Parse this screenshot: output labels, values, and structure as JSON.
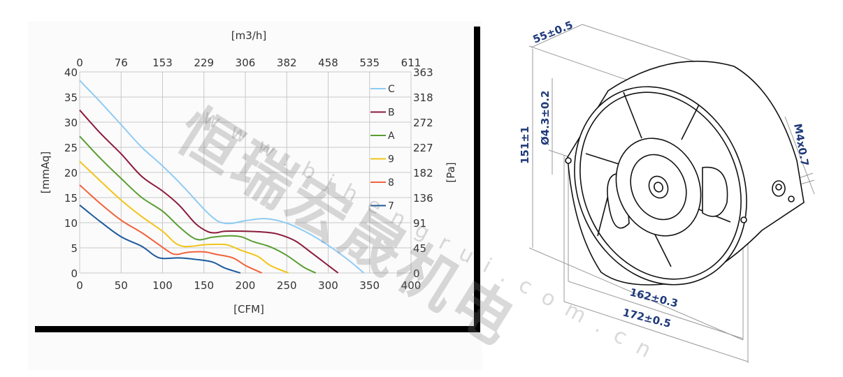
{
  "chart_data": {
    "type": "line",
    "xlabel": "[CFM]",
    "ylabel": "[mmAq]",
    "x2label": "[m3/h]",
    "y2label": "[Pa]",
    "xlim": [
      0,
      400
    ],
    "ylim": [
      0,
      40
    ],
    "x_ticks": [
      "0",
      "50",
      "100",
      "150",
      "200",
      "250",
      "300",
      "350",
      "400"
    ],
    "y_ticks": [
      "0",
      "5",
      "10",
      "15",
      "20",
      "25",
      "30",
      "35",
      "40"
    ],
    "x2_ticks": [
      "0",
      "76",
      "153",
      "229",
      "306",
      "382",
      "458",
      "535",
      "611"
    ],
    "y2_ticks": [
      "0",
      "45",
      "91",
      "136",
      "182",
      "227",
      "272",
      "318",
      "363"
    ],
    "grid": true,
    "legend_position": "right",
    "series": [
      {
        "name": "C",
        "color": "#8ecbf5",
        "points": [
          [
            0,
            38.3
          ],
          [
            25,
            34
          ],
          [
            50,
            29.5
          ],
          [
            75,
            25
          ],
          [
            100,
            21.3
          ],
          [
            125,
            17.2
          ],
          [
            150,
            12.7
          ],
          [
            165,
            10.5
          ],
          [
            175,
            9.9
          ],
          [
            185,
            9.9
          ],
          [
            200,
            10.4
          ],
          [
            225,
            10.8
          ],
          [
            250,
            9.9
          ],
          [
            275,
            8
          ],
          [
            300,
            5.5
          ],
          [
            325,
            2.5
          ],
          [
            343,
            0
          ]
        ]
      },
      {
        "name": "B",
        "color": "#8b1a3a",
        "points": [
          [
            0,
            32.4
          ],
          [
            25,
            27.8
          ],
          [
            50,
            23.7
          ],
          [
            75,
            19.2
          ],
          [
            100,
            16.3
          ],
          [
            120,
            13.5
          ],
          [
            140,
            9.8
          ],
          [
            155,
            8.2
          ],
          [
            165,
            8
          ],
          [
            175,
            8.3
          ],
          [
            200,
            8.3
          ],
          [
            225,
            8.1
          ],
          [
            240,
            7.7
          ],
          [
            260,
            6.4
          ],
          [
            280,
            4
          ],
          [
            300,
            1.5
          ],
          [
            312,
            0
          ]
        ]
      },
      {
        "name": "A",
        "color": "#5a9e32",
        "points": [
          [
            0,
            27.2
          ],
          [
            25,
            22.8
          ],
          [
            50,
            18.8
          ],
          [
            75,
            15
          ],
          [
            100,
            12.3
          ],
          [
            120,
            9.2
          ],
          [
            135,
            7.2
          ],
          [
            145,
            6.6
          ],
          [
            160,
            7.1
          ],
          [
            180,
            7.4
          ],
          [
            195,
            7.2
          ],
          [
            210,
            6.2
          ],
          [
            230,
            5.2
          ],
          [
            250,
            3.5
          ],
          [
            270,
            1.2
          ],
          [
            285,
            0
          ]
        ]
      },
      {
        "name": "9",
        "color": "#f2c419",
        "points": [
          [
            0,
            22.2
          ],
          [
            25,
            18.3
          ],
          [
            50,
            14.5
          ],
          [
            75,
            11.2
          ],
          [
            100,
            8.3
          ],
          [
            115,
            6
          ],
          [
            125,
            5.3
          ],
          [
            135,
            5.3
          ],
          [
            150,
            5.6
          ],
          [
            170,
            5.7
          ],
          [
            180,
            5.5
          ],
          [
            195,
            4.5
          ],
          [
            215,
            3.3
          ],
          [
            230,
            1.5
          ],
          [
            252,
            0
          ]
        ]
      },
      {
        "name": "8",
        "color": "#f2623a",
        "points": [
          [
            0,
            17.5
          ],
          [
            25,
            13.8
          ],
          [
            50,
            10.5
          ],
          [
            75,
            8
          ],
          [
            95,
            5.7
          ],
          [
            110,
            4
          ],
          [
            118,
            3.7
          ],
          [
            130,
            4.1
          ],
          [
            150,
            4.2
          ],
          [
            165,
            3.7
          ],
          [
            185,
            3
          ],
          [
            200,
            1.5
          ],
          [
            220,
            0
          ]
        ]
      },
      {
        "name": "7",
        "color": "#1d5a9e",
        "points": [
          [
            0,
            13.5
          ],
          [
            25,
            10.2
          ],
          [
            50,
            7.2
          ],
          [
            75,
            5.3
          ],
          [
            90,
            3.5
          ],
          [
            100,
            2.9
          ],
          [
            120,
            3
          ],
          [
            140,
            2.7
          ],
          [
            160,
            2.2
          ],
          [
            175,
            1
          ],
          [
            194,
            0
          ]
        ]
      }
    ]
  },
  "drawing": {
    "dimension_color": "#1f3a7a",
    "dimensions": {
      "depth": "55±0.5",
      "height": "151±1",
      "hole": "Ø4.3±0.2",
      "thread": "M4x0.7",
      "hole_spacing": "162±0.3",
      "width": "172±0.5"
    }
  },
  "watermark": {
    "brand": "恒瑞宏晟机电",
    "url": "www.bjhengrui.com.cn"
  }
}
